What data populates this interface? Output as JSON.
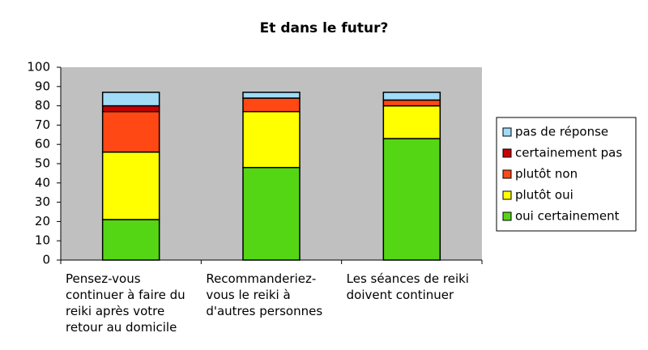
{
  "chart_data": {
    "type": "stacked-bar",
    "title": "Et dans le futur?",
    "categories": [
      "Pensez-vous continuer à faire du reiki après votre retour au domicile",
      "Recommanderiez-vous le reiki à d'autres personnes",
      "Les séances de reiki doivent continuer"
    ],
    "series": [
      {
        "name": "oui certainement",
        "color": "#55d614",
        "values": [
          21,
          48,
          63
        ]
      },
      {
        "name": "plutôt oui",
        "color": "#ffff00",
        "values": [
          35,
          29,
          17
        ]
      },
      {
        "name": "plutôt non",
        "color": "#ff4814",
        "values": [
          21,
          7,
          3
        ]
      },
      {
        "name": "certainement pas",
        "color": "#c80000",
        "values": [
          3,
          0,
          0
        ]
      },
      {
        "name": "pas de réponse",
        "color": "#a0dcf8",
        "values": [
          7,
          3,
          4
        ]
      }
    ],
    "ylim": [
      0,
      100
    ],
    "yticks": [
      0,
      10,
      20,
      30,
      40,
      50,
      60,
      70,
      80,
      90,
      100
    ]
  }
}
